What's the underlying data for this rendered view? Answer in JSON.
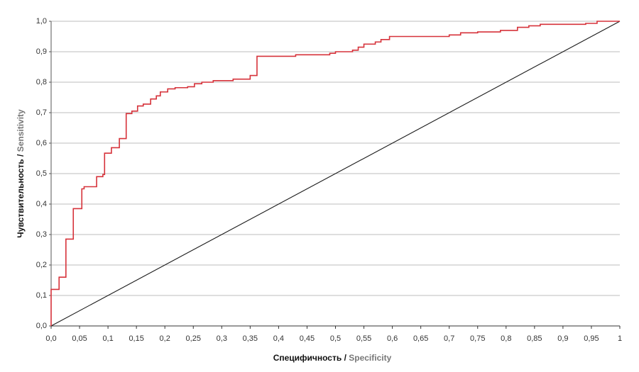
{
  "chart_data": {
    "type": "line",
    "x_label": [
      "Специфичность /",
      "Specificity"
    ],
    "y_label": [
      "Чувствительность /",
      "Sensitivity"
    ],
    "xlim": [
      0,
      1
    ],
    "ylim": [
      0,
      1
    ],
    "xticks": [
      {
        "value": 0,
        "label": "0,0"
      },
      {
        "value": 0.05,
        "label": "0,05"
      },
      {
        "value": 0.1,
        "label": "0,1"
      },
      {
        "value": 0.15,
        "label": "0,15"
      },
      {
        "value": 0.2,
        "label": "0,2"
      },
      {
        "value": 0.25,
        "label": "0,25"
      },
      {
        "value": 0.3,
        "label": "0,3"
      },
      {
        "value": 0.35,
        "label": "0,35"
      },
      {
        "value": 0.4,
        "label": "0,4"
      },
      {
        "value": 0.45,
        "label": "0,45"
      },
      {
        "value": 0.5,
        "label": "0,5"
      },
      {
        "value": 0.55,
        "label": "0,55"
      },
      {
        "value": 0.6,
        "label": "0,6"
      },
      {
        "value": 0.65,
        "label": "0,65"
      },
      {
        "value": 0.7,
        "label": "0,7"
      },
      {
        "value": 0.75,
        "label": "0,75"
      },
      {
        "value": 0.8,
        "label": "0,8"
      },
      {
        "value": 0.85,
        "label": "0,85"
      },
      {
        "value": 0.9,
        "label": "0,9"
      },
      {
        "value": 0.95,
        "label": "0,95"
      },
      1
    ],
    "yticks": [
      {
        "value": 0,
        "label": "0,0"
      },
      {
        "value": 0.1,
        "label": "0,1"
      },
      {
        "value": 0.2,
        "label": "0,2"
      },
      {
        "value": 0.3,
        "label": "0,3"
      },
      {
        "value": 0.4,
        "label": "0,4"
      },
      {
        "value": 0.5,
        "label": "0,5"
      },
      {
        "value": 0.6,
        "label": "0,6"
      },
      {
        "value": 0.7,
        "label": "0,7"
      },
      {
        "value": 0.8,
        "label": "0,8"
      },
      {
        "value": 0.9,
        "label": "0,9"
      },
      {
        "value": 1,
        "label": "1,0"
      }
    ],
    "grid": true,
    "series": [
      {
        "color": "#d6323a",
        "x": [
          0,
          0,
          0.014,
          0.014,
          0.026,
          0.026,
          0.039,
          0.039,
          0.054,
          0.054,
          0.058,
          0.058,
          0.08,
          0.08,
          0.091,
          0.091,
          0.094,
          0.094,
          0.106,
          0.106,
          0.12,
          0.12,
          0.132,
          0.132,
          0.142,
          0.142,
          0.152,
          0.152,
          0.162,
          0.162,
          0.175,
          0.175,
          0.185,
          0.185,
          0.192,
          0.192,
          0.205,
          0.205,
          0.218,
          0.218,
          0.24,
          0.24,
          0.252,
          0.252,
          0.265,
          0.265,
          0.285,
          0.285,
          0.32,
          0.32,
          0.35,
          0.35,
          0.362,
          0.362,
          0.43,
          0.43,
          0.49,
          0.49,
          0.5,
          0.5,
          0.53,
          0.53,
          0.54,
          0.54,
          0.55,
          0.55,
          0.57,
          0.57,
          0.58,
          0.58,
          0.595,
          0.595,
          0.7,
          0.7,
          0.72,
          0.72,
          0.75,
          0.75,
          0.79,
          0.79,
          0.82,
          0.82,
          0.84,
          0.84,
          0.86,
          0.86,
          0.94,
          0.94,
          0.96,
          0.96,
          1
        ],
        "values": [
          0,
          0.12,
          0.12,
          0.16,
          0.16,
          0.285,
          0.285,
          0.385,
          0.385,
          0.45,
          0.45,
          0.457,
          0.457,
          0.49,
          0.49,
          0.497,
          0.497,
          0.567,
          0.567,
          0.585,
          0.585,
          0.615,
          0.615,
          0.697,
          0.697,
          0.705,
          0.705,
          0.722,
          0.722,
          0.728,
          0.728,
          0.745,
          0.745,
          0.755,
          0.755,
          0.768,
          0.768,
          0.778,
          0.778,
          0.782,
          0.782,
          0.785,
          0.785,
          0.795,
          0.795,
          0.8,
          0.8,
          0.805,
          0.805,
          0.81,
          0.81,
          0.822,
          0.822,
          0.885,
          0.885,
          0.89,
          0.89,
          0.895,
          0.895,
          0.9,
          0.9,
          0.905,
          0.905,
          0.915,
          0.915,
          0.925,
          0.925,
          0.932,
          0.932,
          0.94,
          0.94,
          0.95,
          0.95,
          0.955,
          0.955,
          0.962,
          0.962,
          0.965,
          0.965,
          0.97,
          0.97,
          0.98,
          0.98,
          0.985,
          0.985,
          0.99,
          0.99,
          0.993,
          0.993,
          1,
          1
        ]
      },
      {
        "color": "#1a1a1a",
        "x": [
          0,
          1
        ],
        "values": [
          0,
          1
        ]
      }
    ]
  }
}
